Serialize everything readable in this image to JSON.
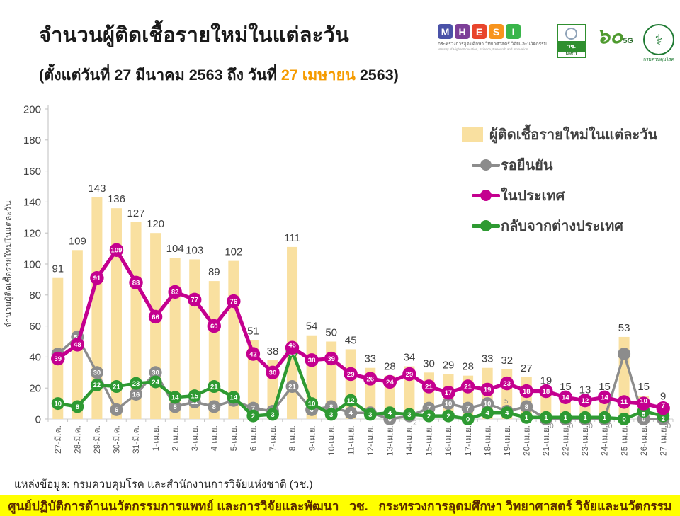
{
  "header": {
    "title": "จำนวนผู้ติดเชื้อรายใหม่ในแต่ละวัน",
    "subtitle_prefix": "(ตั้งแต่วันที่ 27 มีนาคม 2563 ถึง วันที่ ",
    "subtitle_highlight": "27 เมษายน",
    "subtitle_suffix": " 2563)",
    "highlight_color": "#F59B00"
  },
  "logos": {
    "mhesi": {
      "letters": [
        "M",
        "H",
        "E",
        "S",
        "I"
      ],
      "colors": [
        "#4A52A8",
        "#7D3F98",
        "#E8452C",
        "#F7941D",
        "#39B54A"
      ],
      "thai": "กระทรวงการอุดมศึกษา วิทยาศาสตร์ วิจัยและนวัตกรรม",
      "english": "Ministry of Higher Education, Science, Research and Innovation"
    },
    "nrct": {
      "thai": "วช.",
      "latin": "NRCT"
    },
    "sixty_5g": {
      "text": "๖๐",
      "sub": "5G"
    },
    "ddc": {
      "symbol": "⚕",
      "thai": "กรมควบคุมโรค"
    }
  },
  "chart_data": {
    "type": "bar",
    "title": "จำนวนผู้ติดเชื้อรายใหม่ในแต่ละวัน",
    "ylabel": "จำนวนผู้ติดเชื้อรายใหม่ในแต่ละวัน",
    "xlabel": "",
    "ylim": [
      0,
      200
    ],
    "ytick_step": 20,
    "grid": false,
    "legend_position": "top-right",
    "categories": [
      "27-มี.ค.",
      "28-มี.ค.",
      "29-มี.ค.",
      "30-มี.ค.",
      "31-มี.ค.",
      "1-เม.ย.",
      "2-เม.ย.",
      "3-เม.ย.",
      "4-เม.ย.",
      "5-เม.ย.",
      "6-เม.ย.",
      "7-เม.ย.",
      "8-เม.ย.",
      "9-เม.ย.",
      "10-เม.ย.",
      "11-เม.ย.",
      "12-เม.ย.",
      "13-เม.ย.",
      "14-เม.ย.",
      "15-เม.ย.",
      "16-เม.ย.",
      "17-เม.ย.",
      "18-เม.ย.",
      "19-เม.ย.",
      "20-เม.ย.",
      "21-เม.ย.",
      "22-เม.ย.",
      "23-เม.ย.",
      "24-เม.ย.",
      "25-เม.ย.",
      "26-เม.ย.",
      "27-เม.ย."
    ],
    "bars": {
      "name": "ผู้ติดเชื้อรายใหม่ในแต่ละวัน",
      "color": "#F9E0A0",
      "values": [
        91,
        109,
        143,
        136,
        127,
        120,
        104,
        103,
        89,
        102,
        51,
        38,
        111,
        54,
        50,
        45,
        33,
        28,
        34,
        30,
        29,
        28,
        33,
        32,
        27,
        19,
        15,
        13,
        15,
        53,
        15,
        9
      ]
    },
    "series": [
      {
        "name": "รอยืนยัน",
        "color": "#8C8C8C",
        "values": [
          42,
          53,
          30,
          6,
          16,
          30,
          8,
          11,
          8,
          12,
          7,
          5,
          21,
          6,
          8,
          4,
          4,
          0,
          2,
          7,
          10,
          7,
          10,
          5,
          8,
          0,
          0,
          0,
          0,
          42,
          0,
          0
        ],
        "label_modes": [
          "in",
          "in",
          "in",
          "in",
          "in",
          "in",
          "in",
          "in",
          "in",
          "in",
          "in",
          "in",
          "in",
          "in",
          "in",
          "in",
          "in",
          "in",
          "out",
          "in",
          "in",
          "in",
          "in",
          "out",
          "in",
          "out",
          "out",
          "out",
          "out",
          "none",
          "in",
          "out"
        ]
      },
      {
        "name": "ในประเทศ",
        "color": "#C4008F",
        "values": [
          39,
          48,
          91,
          109,
          88,
          66,
          82,
          77,
          60,
          76,
          42,
          30,
          46,
          38,
          39,
          29,
          26,
          24,
          29,
          21,
          17,
          21,
          19,
          23,
          18,
          18,
          14,
          12,
          14,
          11,
          10,
          7
        ]
      },
      {
        "name": "กลับจากต่างประเทศ",
        "color": "#2E9A32",
        "values": [
          10,
          8,
          22,
          21,
          23,
          24,
          14,
          15,
          21,
          14,
          2,
          3,
          44,
          10,
          3,
          12,
          3,
          4,
          3,
          2,
          2,
          0,
          4,
          4,
          1,
          1,
          1,
          1,
          1,
          0,
          5,
          2
        ]
      }
    ]
  },
  "source": "แหล่งข้อมูล: กรมควบคุมโรค และสำนักงานการวิจัยแห่งชาติ (วช.)",
  "footer": "ศูนย์ปฏิบัติการด้านนวัตกรรมการแพทย์ และการวิจัยและพัฒนา   วช.   กระทรวงการอุดมศึกษา วิทยาศาสตร์ วิจัยและนวัตกรรม"
}
